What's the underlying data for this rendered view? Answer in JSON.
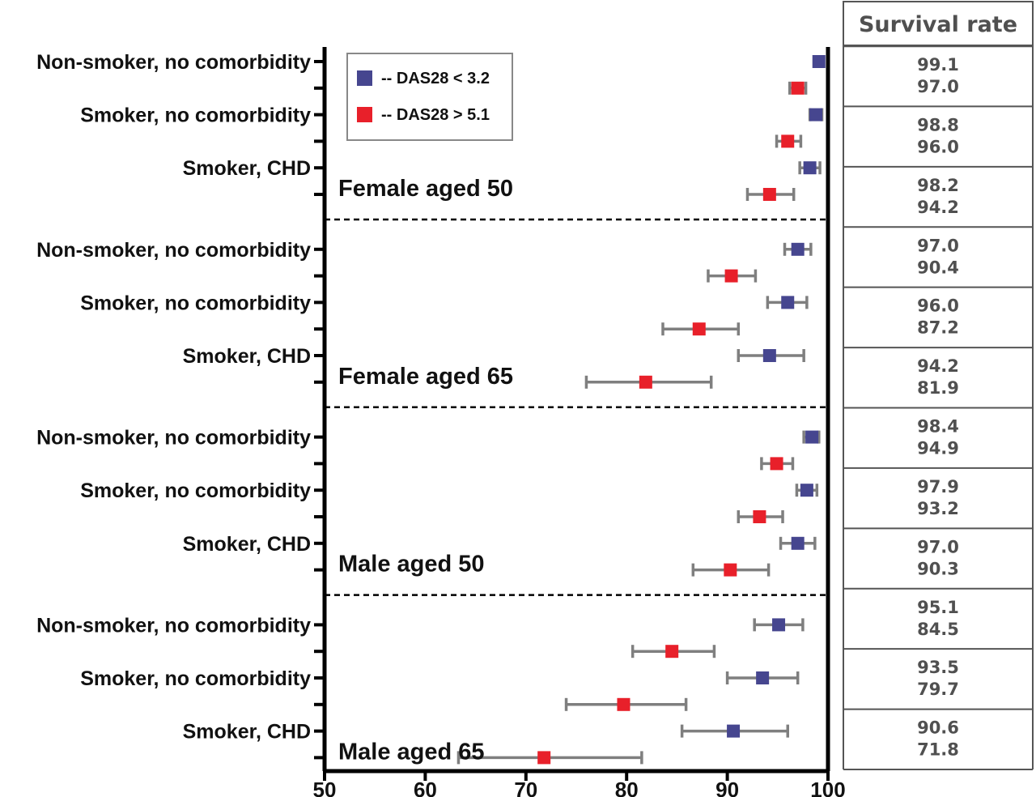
{
  "chart_data": {
    "type": "scatter",
    "subtype": "forest-plot",
    "xlim": [
      50,
      100
    ],
    "x_ticks": [
      "50",
      "60",
      "70",
      "80",
      "90",
      "100"
    ],
    "legend": {
      "placement": "top-left",
      "entries": [
        {
          "name": "--  DAS28 < 3.2",
          "color": "#46468f"
        },
        {
          "name": "--  DAS28 > 5.1",
          "color": "#e8202a"
        }
      ]
    },
    "colors": {
      "low": "#46468f",
      "high": "#e8202a",
      "errorbar": "#7f7f7f"
    },
    "table_header": "Survival rate",
    "groups": [
      {
        "label": "Female aged 50",
        "rows": [
          {
            "label": "Non-smoker, no comorbidity",
            "low": {
              "value": 99.1,
              "ci": [
                98.6,
                99.5
              ],
              "text": "99.1"
            },
            "high": {
              "value": 97.0,
              "ci": [
                96.2,
                97.8
              ],
              "text": "97.0"
            }
          },
          {
            "label": "Smoker, no comorbidity",
            "low": {
              "value": 98.8,
              "ci": [
                98.2,
                99.4
              ],
              "text": "98.8"
            },
            "high": {
              "value": 96.0,
              "ci": [
                94.9,
                97.3
              ],
              "text": "96.0"
            }
          },
          {
            "label": "Smoker, CHD",
            "low": {
              "value": 98.2,
              "ci": [
                97.2,
                99.2
              ],
              "text": "98.2"
            },
            "high": {
              "value": 94.2,
              "ci": [
                92.0,
                96.6
              ],
              "text": "94.2"
            }
          }
        ]
      },
      {
        "label": "Female aged 65",
        "rows": [
          {
            "label": "Non-smoker, no comorbidity",
            "low": {
              "value": 97.0,
              "ci": [
                95.7,
                98.3
              ],
              "text": "97.0"
            },
            "high": {
              "value": 90.4,
              "ci": [
                88.1,
                92.8
              ],
              "text": "90.4"
            }
          },
          {
            "label": "Smoker, no comorbidity",
            "low": {
              "value": 96.0,
              "ci": [
                94.0,
                97.9
              ],
              "text": "96.0"
            },
            "high": {
              "value": 87.2,
              "ci": [
                83.6,
                91.1
              ],
              "text": "87.2"
            }
          },
          {
            "label": "Smoker, CHD",
            "low": {
              "value": 94.2,
              "ci": [
                91.1,
                97.6
              ],
              "text": "94.2"
            },
            "high": {
              "value": 81.9,
              "ci": [
                76.0,
                88.4
              ],
              "text": "81.9"
            }
          }
        ]
      },
      {
        "label": "Male aged 50",
        "rows": [
          {
            "label": "Non-smoker, no comorbidity",
            "low": {
              "value": 98.4,
              "ci": [
                97.6,
                99.1
              ],
              "text": "98.4"
            },
            "high": {
              "value": 94.9,
              "ci": [
                93.4,
                96.5
              ],
              "text": "94.9"
            }
          },
          {
            "label": "Smoker, no comorbidity",
            "low": {
              "value": 97.9,
              "ci": [
                96.9,
                98.9
              ],
              "text": "97.9"
            },
            "high": {
              "value": 93.2,
              "ci": [
                91.1,
                95.5
              ],
              "text": "93.2"
            }
          },
          {
            "label": "Smoker, CHD",
            "low": {
              "value": 97.0,
              "ci": [
                95.3,
                98.7
              ],
              "text": "97.0"
            },
            "high": {
              "value": 90.3,
              "ci": [
                86.6,
                94.1
              ],
              "text": "90.3"
            }
          }
        ]
      },
      {
        "label": "Male aged 65",
        "rows": [
          {
            "label": "Non-smoker, no comorbidity",
            "low": {
              "value": 95.1,
              "ci": [
                92.7,
                97.5
              ],
              "text": "95.1"
            },
            "high": {
              "value": 84.5,
              "ci": [
                80.6,
                88.7
              ],
              "text": "84.5"
            }
          },
          {
            "label": "Smoker, no comorbidity",
            "low": {
              "value": 93.5,
              "ci": [
                90.0,
                97.0
              ],
              "text": "93.5"
            },
            "high": {
              "value": 79.7,
              "ci": [
                74.0,
                85.9
              ],
              "text": "79.7"
            }
          },
          {
            "label": "Smoker, CHD",
            "low": {
              "value": 90.6,
              "ci": [
                85.5,
                96.0
              ],
              "text": "90.6"
            },
            "high": {
              "value": 71.8,
              "ci": [
                63.3,
                81.5
              ],
              "text": "71.8"
            }
          }
        ]
      }
    ]
  }
}
